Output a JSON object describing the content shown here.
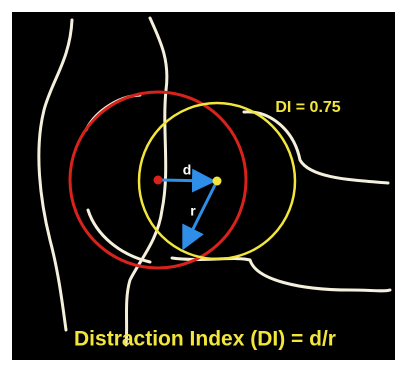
{
  "labels": {
    "index": "DI = 0.75",
    "distance": "d",
    "radius": "r"
  },
  "caption": "Distraction Index (DI) = d/r"
}
